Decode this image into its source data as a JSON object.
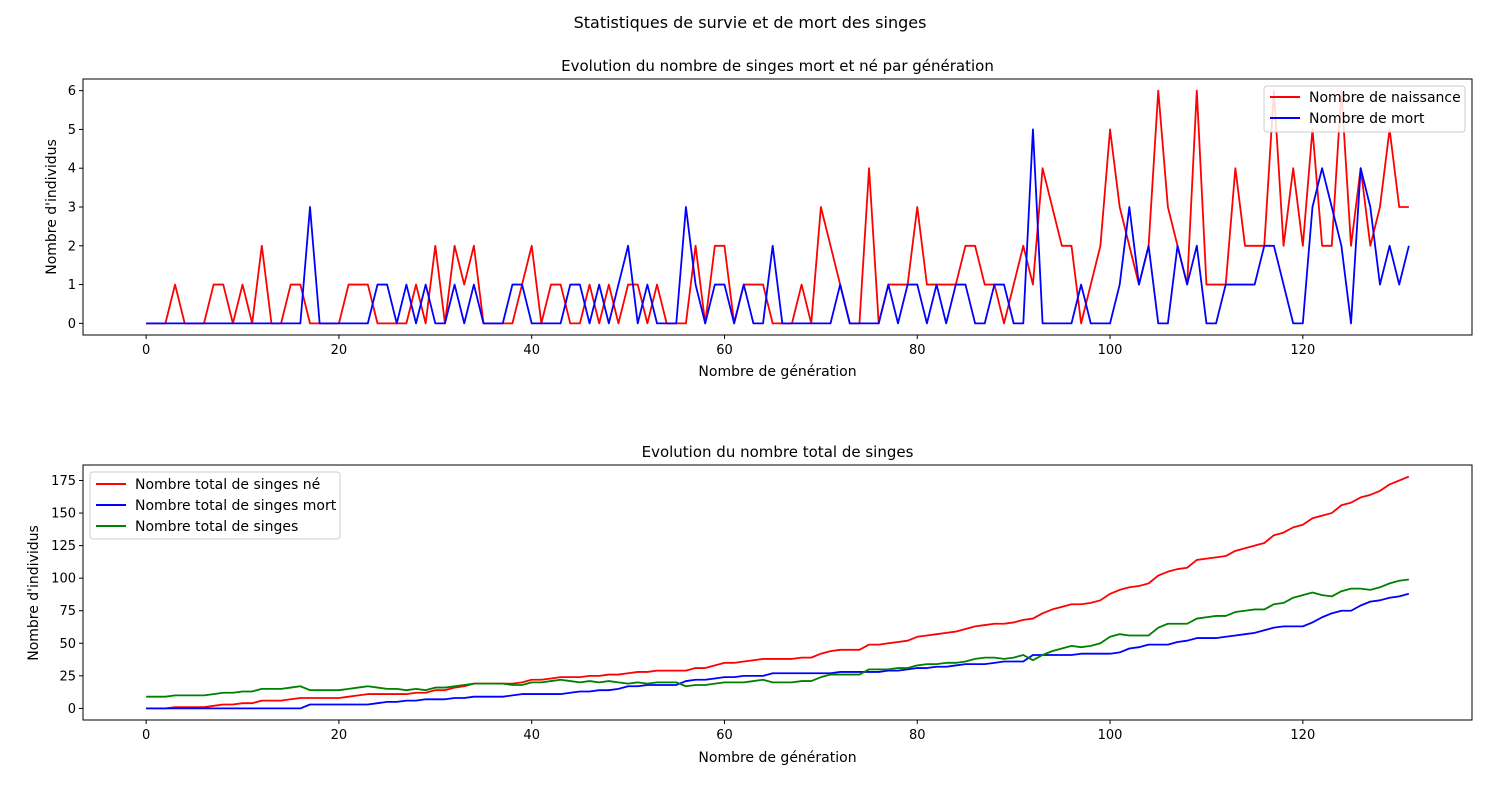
{
  "figure_title": "Statistiques de survie et de mort des singes",
  "colors": {
    "red": "#ff0000",
    "blue": "#0000ff",
    "green": "#008000"
  },
  "chart_data": [
    {
      "type": "line",
      "title": "Evolution du nombre de singes mort et né par génération",
      "xlabel": "Nombre de génération",
      "ylabel": "Nombre d'individus",
      "xlim": [
        -6.55,
        137.55
      ],
      "ylim": [
        -0.3,
        6.3
      ],
      "xticks": [
        0,
        20,
        40,
        60,
        80,
        100,
        120
      ],
      "yticks": [
        0,
        1,
        2,
        3,
        4,
        5,
        6
      ],
      "legend_position": "upper right",
      "series": [
        {
          "name": "Nombre de naissance",
          "color": "red",
          "values": [
            0,
            0,
            0,
            1,
            0,
            0,
            0,
            1,
            1,
            0,
            1,
            0,
            2,
            0,
            0,
            1,
            1,
            0,
            0,
            0,
            0,
            1,
            1,
            1,
            0,
            0,
            0,
            0,
            1,
            0,
            2,
            0,
            2,
            1,
            2,
            0,
            0,
            0,
            0,
            1,
            2,
            0,
            1,
            1,
            0,
            0,
            1,
            0,
            1,
            0,
            1,
            1,
            0,
            1,
            0,
            0,
            0,
            2,
            0,
            2,
            2,
            0,
            1,
            1,
            1,
            0,
            0,
            0,
            1,
            0,
            3,
            2,
            1,
            0,
            0,
            4,
            0,
            1,
            1,
            1,
            3,
            1,
            1,
            1,
            1,
            2,
            2,
            1,
            1,
            0,
            1,
            2,
            1,
            4,
            3,
            2,
            2,
            0,
            1,
            2,
            5,
            3,
            2,
            1,
            2,
            6,
            3,
            2,
            1,
            6,
            1,
            1,
            1,
            4,
            2,
            2,
            2,
            6,
            2,
            4,
            2,
            5,
            2,
            2,
            6,
            2,
            4,
            2,
            3,
            5,
            3,
            3
          ]
        },
        {
          "name": "Nombre de mort",
          "color": "blue",
          "values": [
            0,
            0,
            0,
            0,
            0,
            0,
            0,
            0,
            0,
            0,
            0,
            0,
            0,
            0,
            0,
            0,
            0,
            3,
            0,
            0,
            0,
            0,
            0,
            0,
            1,
            1,
            0,
            1,
            0,
            1,
            0,
            0,
            1,
            0,
            1,
            0,
            0,
            0,
            1,
            1,
            0,
            0,
            0,
            0,
            1,
            1,
            0,
            1,
            0,
            1,
            2,
            0,
            1,
            0,
            0,
            0,
            3,
            1,
            0,
            1,
            1,
            0,
            1,
            0,
            0,
            2,
            0,
            0,
            0,
            0,
            0,
            0,
            1,
            0,
            0,
            0,
            0,
            1,
            0,
            1,
            1,
            0,
            1,
            0,
            1,
            1,
            0,
            0,
            1,
            1,
            0,
            0,
            5,
            0,
            0,
            0,
            0,
            1,
            0,
            0,
            0,
            1,
            3,
            1,
            2,
            0,
            0,
            2,
            1,
            2,
            0,
            0,
            1,
            1,
            1,
            1,
            2,
            2,
            1,
            0,
            0,
            3,
            4,
            3,
            2,
            0,
            4,
            3,
            1,
            2,
            1,
            2
          ]
        }
      ]
    },
    {
      "type": "line",
      "title": "Evolution du nombre total de singes",
      "xlabel": "Nombre de génération",
      "ylabel": "Nombre d'individus",
      "xlim": [
        -6.55,
        137.55
      ],
      "ylim": [
        -8.9,
        186.9
      ],
      "xticks": [
        0,
        20,
        40,
        60,
        80,
        100,
        120
      ],
      "yticks": [
        0,
        25,
        50,
        75,
        100,
        125,
        150,
        175
      ],
      "legend_position": "upper left",
      "series": [
        {
          "name": "Nombre total de singes né",
          "color": "red",
          "values": [
            0,
            0,
            0,
            1,
            1,
            1,
            1,
            2,
            3,
            3,
            4,
            4,
            6,
            6,
            6,
            7,
            8,
            8,
            8,
            8,
            8,
            9,
            10,
            11,
            11,
            11,
            11,
            11,
            12,
            12,
            14,
            14,
            16,
            17,
            19,
            19,
            19,
            19,
            19,
            20,
            22,
            22,
            23,
            24,
            24,
            24,
            25,
            25,
            26,
            26,
            27,
            28,
            28,
            29,
            29,
            29,
            29,
            31,
            31,
            33,
            35,
            35,
            36,
            37,
            38,
            38,
            38,
            38,
            39,
            39,
            42,
            44,
            45,
            45,
            45,
            49,
            49,
            50,
            51,
            52,
            55,
            56,
            57,
            58,
            59,
            61,
            63,
            64,
            65,
            65,
            66,
            68,
            69,
            73,
            76,
            78,
            80,
            80,
            81,
            83,
            88,
            91,
            93,
            94,
            96,
            102,
            105,
            107,
            108,
            114,
            115,
            116,
            117,
            121,
            123,
            125,
            127,
            133,
            135,
            139,
            141,
            146,
            148,
            150,
            156,
            158,
            162,
            164,
            167,
            172,
            175,
            178
          ]
        },
        {
          "name": "Nombre total de singes mort",
          "color": "blue",
          "values": [
            0,
            0,
            0,
            0,
            0,
            0,
            0,
            0,
            0,
            0,
            0,
            0,
            0,
            0,
            0,
            0,
            0,
            3,
            3,
            3,
            3,
            3,
            3,
            3,
            4,
            5,
            5,
            6,
            6,
            7,
            7,
            7,
            8,
            8,
            9,
            9,
            9,
            9,
            10,
            11,
            11,
            11,
            11,
            11,
            12,
            13,
            13,
            14,
            14,
            15,
            17,
            17,
            18,
            18,
            18,
            18,
            21,
            22,
            22,
            23,
            24,
            24,
            25,
            25,
            25,
            27,
            27,
            27,
            27,
            27,
            27,
            27,
            28,
            28,
            28,
            28,
            28,
            29,
            29,
            30,
            31,
            31,
            32,
            32,
            33,
            34,
            34,
            34,
            35,
            36,
            36,
            36,
            41,
            41,
            41,
            41,
            41,
            42,
            42,
            42,
            42,
            43,
            46,
            47,
            49,
            49,
            49,
            51,
            52,
            54,
            54,
            54,
            55,
            56,
            57,
            58,
            60,
            62,
            63,
            63,
            63,
            66,
            70,
            73,
            75,
            75,
            79,
            82,
            83,
            85,
            86,
            88
          ]
        },
        {
          "name": "Nombre total de singes",
          "color": "green",
          "values": [
            9,
            9,
            9,
            10,
            10,
            10,
            10,
            11,
            12,
            12,
            13,
            13,
            15,
            15,
            15,
            16,
            17,
            14,
            14,
            14,
            14,
            15,
            16,
            17,
            16,
            15,
            15,
            14,
            15,
            14,
            16,
            16,
            17,
            18,
            19,
            19,
            19,
            19,
            18,
            18,
            20,
            20,
            21,
            22,
            21,
            20,
            21,
            20,
            21,
            20,
            19,
            20,
            19,
            20,
            20,
            20,
            17,
            18,
            18,
            19,
            20,
            20,
            20,
            21,
            22,
            20,
            20,
            20,
            21,
            21,
            24,
            26,
            26,
            26,
            26,
            30,
            30,
            30,
            31,
            31,
            33,
            34,
            34,
            35,
            35,
            36,
            38,
            39,
            39,
            38,
            39,
            41,
            37,
            41,
            44,
            46,
            48,
            47,
            48,
            50,
            55,
            57,
            56,
            56,
            56,
            62,
            65,
            65,
            65,
            69,
            70,
            71,
            71,
            74,
            75,
            76,
            76,
            80,
            81,
            85,
            87,
            89,
            87,
            86,
            90,
            92,
            92,
            91,
            93,
            96,
            98,
            99
          ]
        }
      ]
    }
  ]
}
